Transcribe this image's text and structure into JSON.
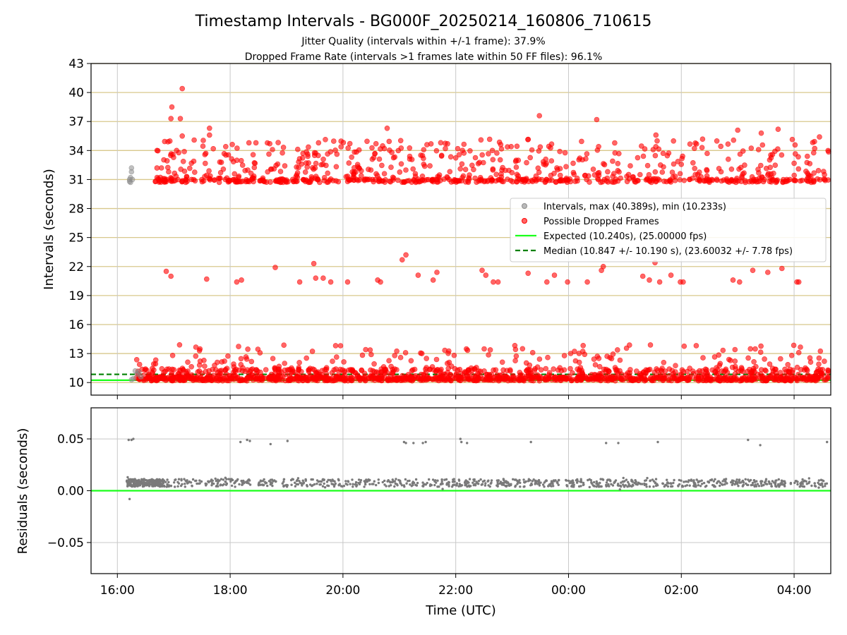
{
  "figure": {
    "title": "Timestamp Intervals - BG000F_20250214_160806_710615",
    "subtitle_line1": "Jitter Quality (intervals within +/-1 frame): 37.9%",
    "subtitle_line2": "Dropped Frame Rate (intervals >1 frames late within 50 FF files): 96.1%"
  },
  "colors": {
    "hgrid_top": "#d8c88c",
    "vgrid": "#c8c8c8",
    "interval_points": "#8c8c8c",
    "dropped_points": "#ff0000",
    "expected_line": "#1aff1a",
    "median_line": "#008000",
    "residual_points": "#7a7a7a",
    "residual_zero": "#1aff1a"
  },
  "chart_data": [
    {
      "type": "scatter",
      "panel": "intervals",
      "ylabel": "Intervals (seconds)",
      "xlabel": "",
      "xlim": [
        "15:32",
        "04:39"
      ],
      "ylim": [
        8.7,
        43
      ],
      "y_ticks": [
        "10",
        "13",
        "16",
        "19",
        "22",
        "25",
        "28",
        "31",
        "34",
        "37",
        "40",
        "43"
      ],
      "x_ticks": [
        "16:00",
        "18:00",
        "20:00",
        "22:00",
        "00:00",
        "02:00",
        "04:00"
      ],
      "grid": "horizontal gold lines at y ticks, vertical gray lines at x ticks",
      "legend_position": "center-right",
      "legend": [
        "Intervals, max (40.389s), min (10.233s)",
        "Possible Dropped Frames",
        "Expected (10.240s), (25.00000 fps)",
        "Median (10.847 +/- 10.190 s), (23.60032 +/- 7.78 fps)"
      ],
      "series": [
        {
          "name": "Intervals, max (40.389s), min (10.233s)",
          "marker": "circle",
          "points": [
            [
              "16:13",
              30.8
            ],
            [
              "16:13",
              31.0
            ],
            [
              "16:14",
              31.2
            ],
            [
              "16:14",
              30.7
            ],
            [
              "16:15",
              31.8
            ],
            [
              "16:15",
              32.2
            ],
            [
              "16:16",
              31.0
            ],
            [
              "16:15",
              10.3
            ],
            [
              "16:17",
              10.4
            ],
            [
              "16:19",
              11.2
            ],
            [
              "16:21",
              10.9
            ],
            [
              "16:23",
              11.1
            ],
            [
              "16:25",
              10.6
            ]
          ]
        },
        {
          "name": "Possible Dropped Frames",
          "marker": "circle",
          "distribution": "three bands from 16:20 to 04:39: ~10.2-14.3 s (dense), ~20.4-22.6 s (sparse), ~30.8-40.4 s (dense)",
          "points": [
            [
              "16:52",
              21.5
            ],
            [
              "16:57",
              21.0
            ],
            [
              "17:35",
              20.7
            ],
            [
              "18:07",
              20.4
            ],
            [
              "18:12",
              20.6
            ],
            [
              "18:48",
              21.9
            ],
            [
              "19:14",
              20.4
            ],
            [
              "19:29",
              22.3
            ],
            [
              "19:31",
              20.8
            ],
            [
              "19:39",
              20.8
            ],
            [
              "19:47",
              20.4
            ],
            [
              "20:05",
              20.4
            ],
            [
              "20:37",
              20.6
            ],
            [
              "20:40",
              20.4
            ],
            [
              "21:03",
              22.7
            ],
            [
              "21:07",
              23.2
            ],
            [
              "21:20",
              21.1
            ],
            [
              "21:36",
              20.6
            ],
            [
              "21:40",
              21.4
            ],
            [
              "22:28",
              21.6
            ],
            [
              "22:32",
              21.1
            ],
            [
              "22:40",
              20.4
            ],
            [
              "22:45",
              20.4
            ],
            [
              "23:17",
              21.3
            ],
            [
              "23:37",
              20.4
            ],
            [
              "23:45",
              21.1
            ],
            [
              "23:59",
              20.4
            ],
            [
              "00:20",
              20.4
            ],
            [
              "00:35",
              21.6
            ],
            [
              "00:37",
              22.0
            ],
            [
              "01:19",
              21.0
            ],
            [
              "01:26",
              20.6
            ],
            [
              "01:32",
              22.4
            ],
            [
              "01:37",
              20.4
            ],
            [
              "01:49",
              21.1
            ],
            [
              "01:59",
              20.4
            ],
            [
              "02:02",
              20.4
            ],
            [
              "02:55",
              20.6
            ],
            [
              "03:02",
              20.4
            ],
            [
              "03:16",
              21.6
            ],
            [
              "03:32",
              21.4
            ],
            [
              "03:47",
              21.8
            ],
            [
              "04:03",
              20.4
            ],
            [
              "04:05",
              20.4
            ],
            [
              "17:09",
              40.4
            ],
            [
              "16:58",
              38.5
            ],
            [
              "16:57",
              37.3
            ],
            [
              "17:07",
              37.3
            ],
            [
              "23:29",
              37.6
            ],
            [
              "00:30",
              37.2
            ],
            [
              "20:47",
              36.3
            ],
            [
              "17:38",
              36.3
            ],
            [
              "03:43",
              36.2
            ],
            [
              "03:00",
              36.1
            ],
            [
              "17:38",
              35.6
            ],
            [
              "17:09",
              35.5
            ],
            [
              "01:33",
              35.6
            ],
            [
              "18:20",
              34.8
            ],
            [
              "00:32",
              34.4
            ],
            [
              "19:34",
              34.8
            ],
            [
              "02:22",
              34.3
            ],
            [
              "03:25",
              35.8
            ],
            [
              "04:27",
              35.4
            ],
            [
              "17:03",
              34.0
            ],
            [
              "18:45",
              34.1
            ],
            [
              "20:52",
              33.8
            ],
            [
              "21:49",
              34.2
            ],
            [
              "22:59",
              34.4
            ],
            [
              "22:39",
              34.0
            ]
          ]
        },
        {
          "name": "Expected (10.240s), (25.00000 fps)",
          "style": "solid line",
          "value": 10.24
        },
        {
          "name": "Median (10.847 +/- 10.190 s), (23.60032 +/- 7.78 fps)",
          "style": "dashed line",
          "value": 10.847
        }
      ]
    },
    {
      "type": "scatter",
      "panel": "residuals",
      "ylabel": "Residuals (seconds)",
      "xlabel": "Time (UTC)",
      "xlim": [
        "15:32",
        "04:39"
      ],
      "ylim": [
        -0.08,
        0.08
      ],
      "y_ticks": [
        "0.05",
        "0.00",
        "−0.05"
      ],
      "x_ticks": [
        "16:00",
        "18:00",
        "20:00",
        "22:00",
        "00:00",
        "02:00",
        "04:00"
      ],
      "grid": "on",
      "series": [
        {
          "name": "Residuals",
          "marker": "dot",
          "distribution": "dense band around +0.007 s from 16:10 to 04:39",
          "points": [
            [
              "16:11",
              0.013
            ],
            [
              "16:13",
              -0.008
            ],
            [
              "16:12",
              0.049
            ],
            [
              "16:15",
              0.049
            ],
            [
              "16:17",
              0.05
            ],
            [
              "18:11",
              0.047
            ],
            [
              "18:18",
              0.049
            ],
            [
              "18:21",
              0.048
            ],
            [
              "18:43",
              0.045
            ],
            [
              "19:01",
              0.048
            ],
            [
              "21:05",
              0.047
            ],
            [
              "21:07",
              0.046
            ],
            [
              "21:15",
              0.046
            ],
            [
              "21:25",
              0.046
            ],
            [
              "21:28",
              0.047
            ],
            [
              "22:05",
              0.05
            ],
            [
              "22:06",
              0.047
            ],
            [
              "22:12",
              0.046
            ],
            [
              "23:20",
              0.047
            ],
            [
              "00:40",
              0.046
            ],
            [
              "00:53",
              0.046
            ],
            [
              "01:35",
              0.047
            ],
            [
              "03:11",
              0.049
            ],
            [
              "03:24",
              0.044
            ],
            [
              "04:35",
              0.047
            ]
          ]
        },
        {
          "name": "Zero",
          "style": "solid line",
          "value": 0
        }
      ]
    }
  ]
}
